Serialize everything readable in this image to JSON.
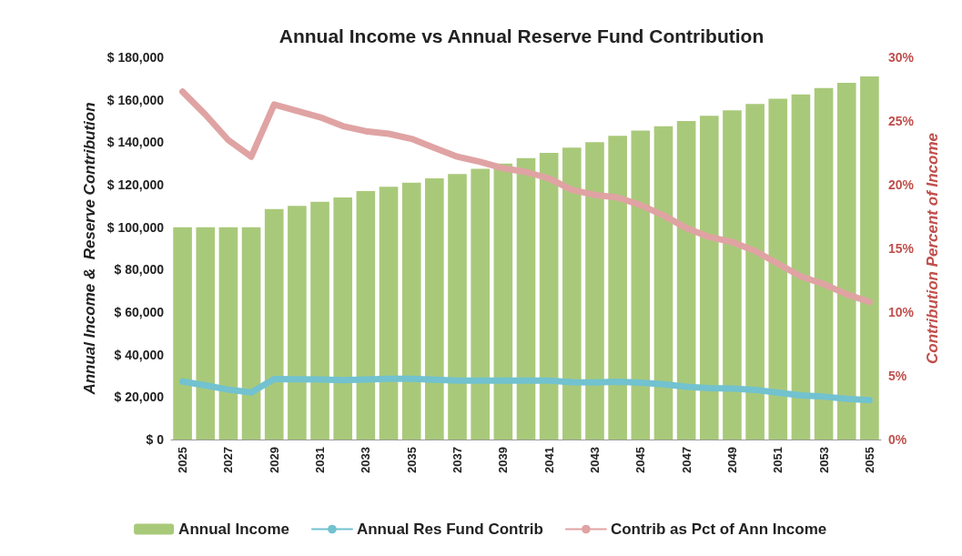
{
  "chart_data": {
    "type": "bar",
    "title": "Annual Income vs Annual Reserve Fund Contribution",
    "ylabel": "Annual Income &  Reserve Contribution",
    "y2label": "Contribution Percent of Income",
    "categories": [
      "2025",
      null,
      "2027",
      null,
      "2029",
      null,
      "2031",
      null,
      "2033",
      null,
      "2035",
      null,
      "2037",
      null,
      "2039",
      null,
      "2041",
      null,
      "2043",
      null,
      "2045",
      null,
      "2047",
      null,
      "2049",
      null,
      "2051",
      null,
      "2053",
      null,
      "2055"
    ],
    "series": [
      {
        "name": "Annual Income",
        "color": "#a9c97a",
        "values": [
          100000,
          100000,
          100000,
          100000,
          108500,
          110000,
          112000,
          114000,
          117000,
          119000,
          121000,
          123000,
          125000,
          127500,
          130000,
          132500,
          135000,
          137500,
          140000,
          143000,
          145500,
          147500,
          150000,
          152500,
          155000,
          158000,
          160500,
          162500,
          165500,
          168000,
          171000
        ]
      },
      {
        "name": "Annual Res Fund Contrib",
        "type": "line",
        "color": "#72c2cf",
        "values": [
          27300,
          25500,
          23500,
          22200,
          28500,
          28400,
          28300,
          28000,
          28300,
          28600,
          28600,
          28200,
          27800,
          27800,
          27700,
          27800,
          27700,
          27000,
          26900,
          27200,
          26800,
          26000,
          24900,
          24200,
          24000,
          23400,
          22100,
          20800,
          20200,
          19200,
          18500
        ]
      },
      {
        "name": "Contrib as Pct of Ann Income",
        "type": "line",
        "axis": "y2",
        "color": "#e0a3a3",
        "values": [
          27.3,
          25.5,
          23.5,
          22.2,
          26.3,
          25.8,
          25.3,
          24.6,
          24.2,
          24.0,
          23.6,
          22.9,
          22.2,
          21.8,
          21.3,
          21.0,
          20.5,
          19.6,
          19.2,
          19.0,
          18.4,
          17.6,
          16.6,
          15.9,
          15.5,
          14.8,
          13.8,
          12.8,
          12.2,
          11.4,
          10.8
        ]
      }
    ],
    "ylim": [
      0,
      180000
    ],
    "yticks": [
      {
        "value": 0,
        "label": "$ 0"
      },
      {
        "value": 20000,
        "label": "$ 20,000"
      },
      {
        "value": 40000,
        "label": "$ 40,000"
      },
      {
        "value": 60000,
        "label": "$ 60,000"
      },
      {
        "value": 80000,
        "label": "$ 80,000"
      },
      {
        "value": 100000,
        "label": "$ 100,000"
      },
      {
        "value": 120000,
        "label": "$ 120,000"
      },
      {
        "value": 140000,
        "label": "$ 140,000"
      },
      {
        "value": 160000,
        "label": "$ 160,000"
      },
      {
        "value": 180000,
        "label": "$ 180,000"
      }
    ],
    "y2lim": [
      0,
      30
    ],
    "y2ticks": [
      {
        "value": 0,
        "label": "0%"
      },
      {
        "value": 5,
        "label": "5%"
      },
      {
        "value": 10,
        "label": "10%"
      },
      {
        "value": 15,
        "label": "15%"
      },
      {
        "value": 20,
        "label": "20%"
      },
      {
        "value": 25,
        "label": "25%"
      },
      {
        "value": 30,
        "label": "30%"
      }
    ],
    "grid": false,
    "legend": "bottom",
    "marker": "none",
    "line_style": "solid"
  }
}
